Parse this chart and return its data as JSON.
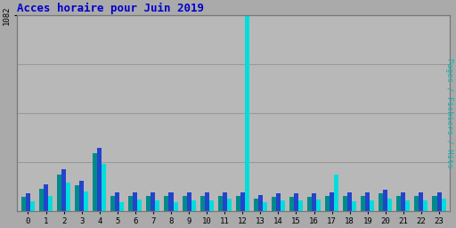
{
  "title": "Acces horaire pour Juin 2019",
  "ymax": 1082,
  "hours": [
    0,
    1,
    2,
    3,
    4,
    5,
    6,
    7,
    8,
    9,
    10,
    11,
    12,
    13,
    14,
    15,
    16,
    17,
    18,
    19,
    20,
    21,
    22,
    23
  ],
  "pages": [
    75,
    120,
    200,
    140,
    320,
    80,
    80,
    80,
    80,
    80,
    80,
    80,
    80,
    65,
    75,
    75,
    75,
    80,
    80,
    80,
    95,
    80,
    80,
    80
  ],
  "fichiers": [
    95,
    145,
    230,
    165,
    350,
    100,
    100,
    100,
    100,
    100,
    100,
    100,
    100,
    85,
    95,
    95,
    95,
    100,
    100,
    100,
    115,
    100,
    100,
    100
  ],
  "hits": [
    50,
    80,
    155,
    105,
    260,
    45,
    60,
    55,
    45,
    55,
    55,
    65,
    1082,
    45,
    55,
    55,
    60,
    200,
    50,
    55,
    65,
    55,
    55,
    65
  ],
  "color_pages": "#008B8B",
  "color_fichiers": "#2244CC",
  "color_hits": "#00DDDD",
  "bg_color": "#aaaaaa",
  "plot_bg": "#b8b8b8",
  "title_color": "#0000CC",
  "grid_color": "#999999",
  "right_label": "Pages / Fichiers / Hits",
  "right_label_color": "#00BBBB"
}
